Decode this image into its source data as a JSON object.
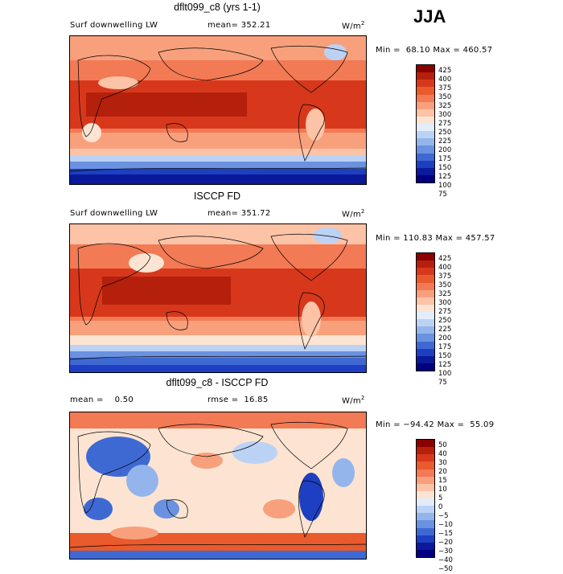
{
  "season": "JJA",
  "panels": [
    {
      "title": "dflt099_c8 (yrs 1-1)",
      "left_label": "Surf downwelling LW",
      "mean_label": "mean= 352.21",
      "units": "W/m",
      "units_sup": "2",
      "stats": "Min =  68.10 Max = 460.57",
      "levels": [
        "425",
        "400",
        "375",
        "350",
        "325",
        "300",
        "275",
        "250",
        "225",
        "200",
        "175",
        "150",
        "125",
        "100",
        "75"
      ]
    },
    {
      "title": "ISCCP FD",
      "left_label": "Surf downwelling LW",
      "mean_label": "mean= 351.72",
      "units": "W/m",
      "units_sup": "2",
      "stats": "Min = 110.83 Max = 457.57",
      "levels": [
        "425",
        "400",
        "375",
        "350",
        "325",
        "300",
        "275",
        "250",
        "225",
        "200",
        "175",
        "150",
        "125",
        "100",
        "75"
      ]
    },
    {
      "title": "dflt099_c8 - ISCCP FD",
      "left_label": "mean =    0.50",
      "mean_label": "rmse =  16.85",
      "units": "W/m",
      "units_sup": "2",
      "stats": "Min = −94.42 Max =  55.09",
      "levels": [
        "50",
        "40",
        "30",
        "20",
        "15",
        "10",
        "5",
        "0",
        "−5",
        "−10",
        "−15",
        "−20",
        "−30",
        "−40",
        "−50"
      ]
    }
  ],
  "colorbar_colors": [
    "#8b0000",
    "#b5200c",
    "#d7381c",
    "#e95a2c",
    "#f27a55",
    "#f8a07c",
    "#fcc3a6",
    "#fde4d2",
    "#e2ecfb",
    "#bcd2f5",
    "#93b5ec",
    "#6a92e0",
    "#3f69d2",
    "#1e3fc1",
    "#0a1a9a",
    "#000080"
  ]
}
